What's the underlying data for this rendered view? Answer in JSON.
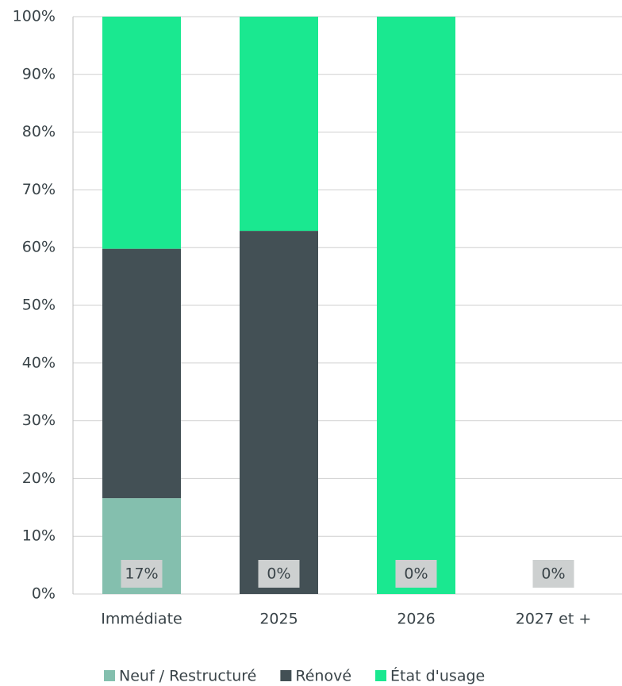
{
  "chart_data": {
    "type": "stacked_bar",
    "categories": [
      "Immédiate",
      "2025",
      "2026",
      "2027 et +"
    ],
    "series": [
      {
        "name": "Neuf / Restructuré",
        "color": "#84bfae",
        "values": [
          16.6,
          0,
          0,
          0
        ],
        "value_labels": [
          "17%",
          "0%",
          "0%",
          "0%"
        ]
      },
      {
        "name": "Rénové",
        "color": "#435055",
        "values": [
          43.2,
          62.9,
          0,
          0
        ]
      },
      {
        "name": "État d'usage",
        "color": "#1ae890",
        "values": [
          40.2,
          37.1,
          100,
          0
        ]
      }
    ],
    "ylim": [
      0,
      100
    ],
    "yticks": [
      {
        "value": 0,
        "label": "0%"
      },
      {
        "value": 10,
        "label": "10%"
      },
      {
        "value": 20,
        "label": "20%"
      },
      {
        "value": 30,
        "label": "30%"
      },
      {
        "value": 40,
        "label": "40%"
      },
      {
        "value": 50,
        "label": "50%"
      },
      {
        "value": 60,
        "label": "60%"
      },
      {
        "value": 70,
        "label": "70%"
      },
      {
        "value": 80,
        "label": "80%"
      },
      {
        "value": 90,
        "label": "90%"
      },
      {
        "value": 100,
        "label": "100%"
      }
    ],
    "grid": true,
    "legend": "bottom"
  }
}
